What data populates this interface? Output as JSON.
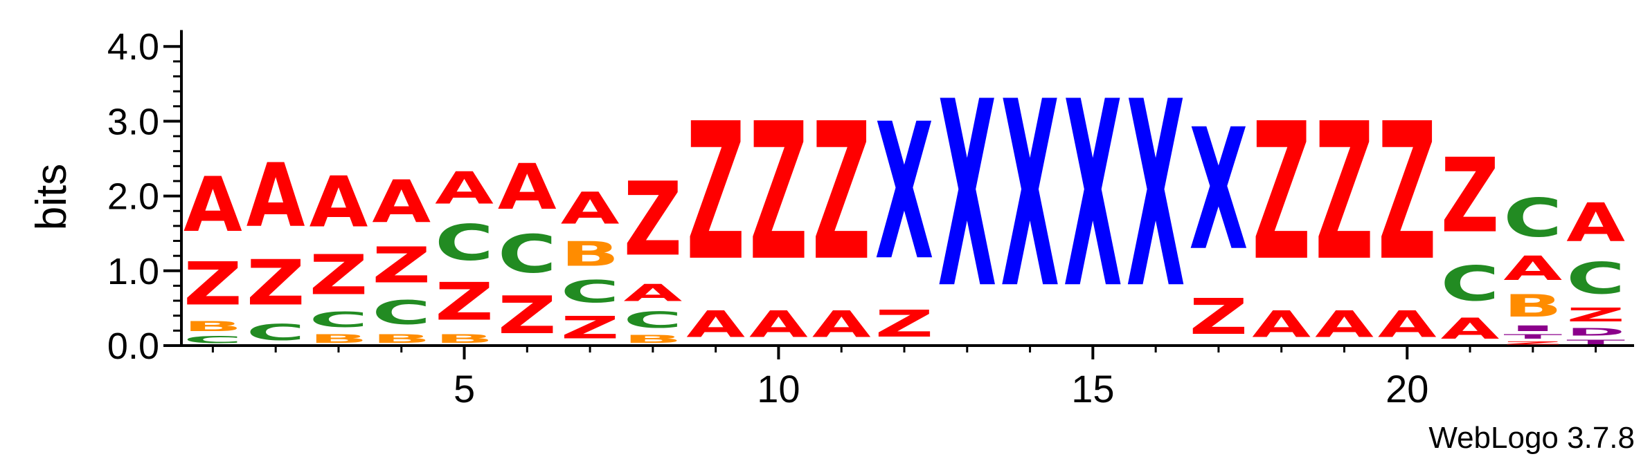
{
  "chart_data": {
    "type": "sequence-logo",
    "ylabel": "bits",
    "ylim": [
      0,
      4.2
    ],
    "y_ticks": [
      "0.0",
      "1.0",
      "2.0",
      "3.0",
      "4.0"
    ],
    "x_ticks": [
      5,
      10,
      15,
      20
    ],
    "positions": 23,
    "colors": {
      "A": "#ff0000",
      "Z": "#ff0000",
      "C": "#228b22",
      "B": "#ff8c00",
      "X": "#0000ff",
      "D": "#8b008b",
      "T": "#8b008b",
      "I": "#8b008b"
    },
    "columns": [
      {
        "pos": 1,
        "stack": [
          [
            "C",
            0.15
          ],
          [
            "B",
            0.21
          ],
          [
            "Z",
            0.93
          ],
          [
            "A",
            1.18
          ]
        ]
      },
      {
        "pos": 2,
        "stack": [
          [
            "C",
            0.35
          ],
          [
            "Z",
            0.97
          ],
          [
            "A",
            1.37
          ]
        ]
      },
      {
        "pos": 3,
        "stack": [
          [
            "B",
            0.18
          ],
          [
            "C",
            0.33
          ],
          [
            "Z",
            0.86
          ],
          [
            "A",
            1.09
          ]
        ]
      },
      {
        "pos": 4,
        "stack": [
          [
            "B",
            0.18
          ],
          [
            "C",
            0.51
          ],
          [
            "Z",
            0.77
          ],
          [
            "A",
            0.92
          ]
        ]
      },
      {
        "pos": 5,
        "stack": [
          [
            "B",
            0.18
          ],
          [
            "Z",
            0.81
          ],
          [
            "C",
            0.77
          ],
          [
            "A",
            0.69
          ]
        ]
      },
      {
        "pos": 6,
        "stack": [
          [
            "Z",
            0.81
          ],
          [
            "C",
            0.82
          ],
          [
            "A",
            0.98
          ]
        ]
      },
      {
        "pos": 7,
        "stack": [
          [
            "Z",
            0.48
          ],
          [
            "C",
            0.48
          ],
          [
            "B",
            0.53
          ],
          [
            "A",
            0.68
          ]
        ]
      },
      {
        "pos": 8,
        "stack": [
          [
            "B",
            0.17
          ],
          [
            "C",
            0.35
          ],
          [
            "A",
            0.37
          ],
          [
            "Z",
            1.59
          ]
        ]
      },
      {
        "pos": 9,
        "stack": [
          [
            "A",
            0.57
          ],
          [
            "Z",
            2.95
          ]
        ]
      },
      {
        "pos": 10,
        "stack": [
          [
            "A",
            0.57
          ],
          [
            "Z",
            2.95
          ]
        ]
      },
      {
        "pos": 11,
        "stack": [
          [
            "A",
            0.57
          ],
          [
            "Z",
            2.95
          ]
        ]
      },
      {
        "pos": 12,
        "stack": [
          [
            "Z",
            0.58
          ],
          [
            "X",
            2.93
          ]
        ]
      },
      {
        "pos": 13,
        "stack": [
          [
            "X",
            4.0
          ]
        ]
      },
      {
        "pos": 14,
        "stack": [
          [
            "X",
            4.0
          ]
        ]
      },
      {
        "pos": 15,
        "stack": [
          [
            "X",
            4.0
          ]
        ]
      },
      {
        "pos": 16,
        "stack": [
          [
            "X",
            4.0
          ]
        ]
      },
      {
        "pos": 17,
        "stack": [
          [
            "Z",
            0.77
          ],
          [
            "X",
            2.61
          ]
        ]
      },
      {
        "pos": 18,
        "stack": [
          [
            "A",
            0.57
          ],
          [
            "Z",
            2.95
          ]
        ]
      },
      {
        "pos": 19,
        "stack": [
          [
            "A",
            0.57
          ],
          [
            "Z",
            2.95
          ]
        ]
      },
      {
        "pos": 20,
        "stack": [
          [
            "A",
            0.57
          ],
          [
            "Z",
            2.95
          ]
        ]
      },
      {
        "pos": 21,
        "stack": [
          [
            "A",
            0.45
          ],
          [
            "C",
            0.75
          ],
          [
            "Z",
            1.6
          ]
        ]
      },
      {
        "pos": 22,
        "stack": [
          [
            "Z",
            0.07
          ],
          [
            "T",
            0.1
          ],
          [
            "I",
            0.12
          ],
          [
            "B",
            0.48
          ],
          [
            "A",
            0.52
          ],
          [
            "C",
            0.83
          ]
        ]
      },
      {
        "pos": 23,
        "stack": [
          [
            "T",
            0.1
          ],
          [
            "D",
            0.16
          ],
          [
            "Z",
            0.3
          ],
          [
            "C",
            0.67
          ],
          [
            "A",
            0.83
          ]
        ]
      }
    ]
  },
  "credit": "WebLogo 3.7.8"
}
